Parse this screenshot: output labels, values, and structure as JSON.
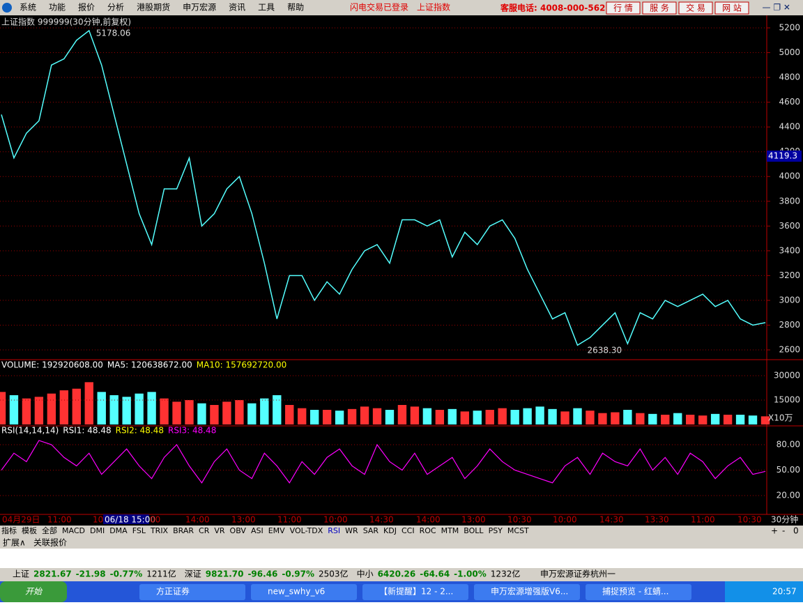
{
  "menu": [
    "系统",
    "功能",
    "报价",
    "分析",
    "港股期货",
    "申万宏源",
    "资讯",
    "工具",
    "帮助"
  ],
  "status_notes": [
    "闪电交易已登录",
    "上证指数"
  ],
  "hotline": "客服电话: 4008-000-562",
  "top_buttons": [
    "行 情",
    "服 务",
    "交 易",
    "网 站"
  ],
  "chart_data": {
    "type": "line",
    "title": "上证指数 999999(30分钟,前复权)",
    "high_label": "5178.06",
    "low_label": "2638.30",
    "current_price": "4119.3",
    "price": [
      4500,
      4150,
      4350,
      4450,
      4900,
      4950,
      5100,
      5178,
      4900,
      4500,
      4100,
      3700,
      3450,
      3900,
      3900,
      4150,
      3600,
      3700,
      3900,
      4000,
      3700,
      3300,
      2850,
      3200,
      3200,
      3000,
      3150,
      3050,
      3250,
      3400,
      3450,
      3300,
      3650,
      3650,
      3600,
      3650,
      3350,
      3550,
      3450,
      3600,
      3650,
      3500,
      3250,
      3050,
      2850,
      2900,
      2638,
      2700,
      2800,
      2900,
      2650,
      2900,
      2850,
      3000,
      2950,
      3000,
      3050,
      2950,
      3000,
      2850,
      2800,
      2820
    ],
    "color": "#54ffff",
    "grid_color": "#a00000",
    "ylim": [
      2600,
      5200
    ],
    "yticks": [
      2600,
      2800,
      3000,
      3200,
      3400,
      3600,
      3800,
      4000,
      4200,
      4400,
      4600,
      4800,
      5000,
      5200
    ],
    "volume_header": [
      "VOLUME: 192920608.00",
      "MA5: 120638672.00",
      "MA10: 157692720.00"
    ],
    "volume_unit": "X10万",
    "volume": [
      20000,
      18000,
      16000,
      17000,
      19000,
      21000,
      22000,
      26000,
      20000,
      18000,
      17000,
      19000,
      20000,
      16000,
      14000,
      15000,
      13000,
      12000,
      14000,
      15000,
      13000,
      16000,
      18000,
      12000,
      10000,
      9000,
      9000,
      8500,
      9500,
      11000,
      10000,
      9000,
      12000,
      11000,
      10000,
      9000,
      9500,
      8000,
      8500,
      9000,
      10000,
      9000,
      10000,
      11000,
      9500,
      8000,
      10000,
      8500,
      7000,
      7500,
      9000,
      7000,
      6500,
      6000,
      7000,
      6000,
      5500,
      6500,
      6000,
      6000,
      5500,
      5000
    ],
    "up_color": "#ff3232",
    "down_color": "#54ffff",
    "vlim": [
      0,
      30000
    ],
    "vticks": [
      15000,
      30000
    ],
    "rsi_header": [
      "RSI(14,14,14)",
      "RSI1: 48.48",
      "RSI2: 48.48",
      "RSI3: 48.48"
    ],
    "rsi": [
      50,
      70,
      60,
      85,
      80,
      65,
      55,
      70,
      45,
      60,
      75,
      55,
      40,
      65,
      80,
      55,
      35,
      60,
      75,
      50,
      40,
      70,
      55,
      35,
      60,
      45,
      65,
      75,
      55,
      45,
      80,
      60,
      50,
      70,
      45,
      55,
      65,
      40,
      55,
      75,
      60,
      50,
      45,
      40,
      35,
      55,
      65,
      45,
      70,
      60,
      55,
      75,
      50,
      65,
      45,
      70,
      60,
      40,
      55,
      65,
      45,
      48.48
    ],
    "rsi_color": "#ff00ff",
    "rlim": [
      0,
      100
    ],
    "rticks": [
      {
        "value": 20,
        "label": "20.00"
      },
      {
        "value": 50,
        "label": "50.00"
      },
      {
        "value": 80,
        "label": "80.00"
      }
    ],
    "time_labels": [
      "04月29日",
      "11:00",
      "10",
      "06/18 15:00",
      "00",
      "14:00",
      "13:00",
      "11:00",
      "10:00",
      "14:30",
      "14:00",
      "13:00",
      "10:30",
      "10:00",
      "14:30",
      "13:30",
      "11:00",
      "10:30"
    ],
    "period": "30分钟"
  },
  "tabs": [
    "指标",
    "模板",
    "全部",
    "MACD",
    "DMI",
    "DMA",
    "FSL",
    "TRIX",
    "BRAR",
    "CR",
    "VR",
    "OBV",
    "ASI",
    "EMV",
    "VOL-TDX",
    "RSI",
    "WR",
    "SAR",
    "KDJ",
    "CCI",
    "ROC",
    "MTM",
    "BOLL",
    "PSY",
    "MCST"
  ],
  "tab_controls": [
    "+",
    "-",
    "0"
  ],
  "sub_tabs": [
    "扩展∧",
    "关联报价"
  ],
  "status": [
    [
      "上证",
      "2821.67",
      "-21.98",
      "-0.77%",
      "1211亿"
    ],
    [
      "深证",
      "9821.70",
      "-96.46",
      "-0.97%",
      "2503亿"
    ],
    [
      "中小",
      "6420.26",
      "-64.64",
      "-1.00%",
      "1232亿"
    ]
  ],
  "broker": "申万宏源证券杭州一",
  "taskbar": {
    "start": "开始",
    "windows": [
      "方正证券",
      "new_swhy_v6",
      "【新提醒】12 - 2...",
      "申万宏源增强版V6...",
      "捕捉预览 - 红蜻..."
    ],
    "clock": "20:57"
  }
}
